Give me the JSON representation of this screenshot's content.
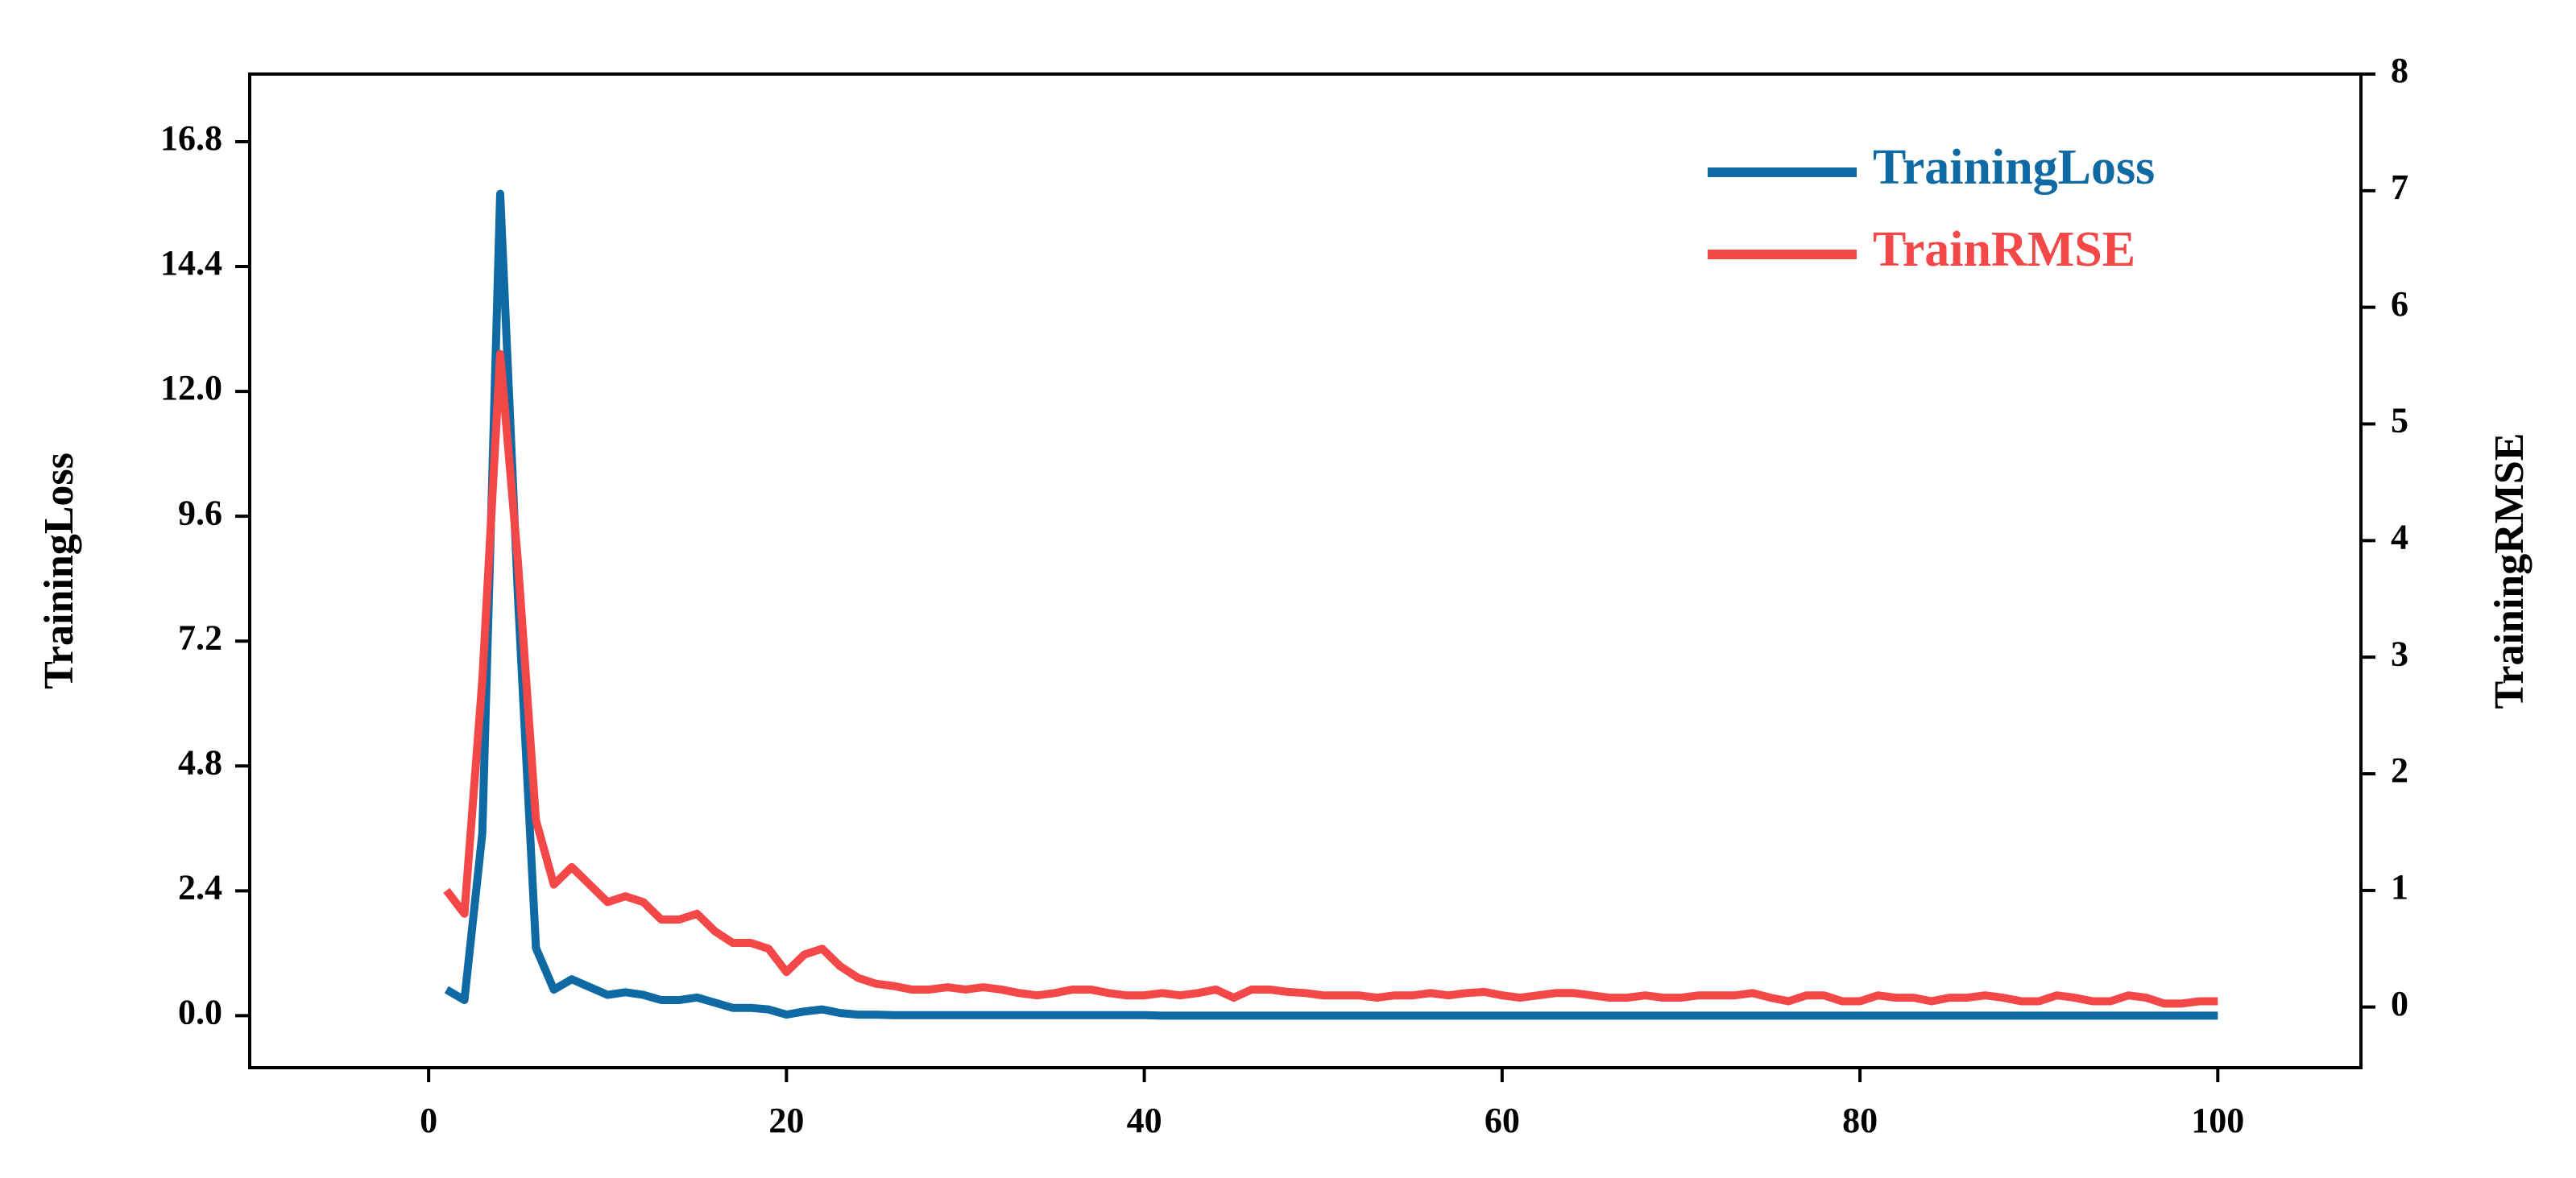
{
  "chart_data": {
    "type": "line",
    "ylabel": "TrainingLoss",
    "y2label": "TrainingRMSE",
    "x": [
      1,
      2,
      3,
      4,
      5,
      6,
      7,
      8,
      9,
      10,
      11,
      12,
      13,
      14,
      15,
      16,
      17,
      18,
      19,
      20,
      21,
      22,
      23,
      24,
      25,
      26,
      27,
      28,
      29,
      30,
      31,
      32,
      33,
      34,
      35,
      36,
      37,
      38,
      39,
      40,
      41,
      42,
      43,
      44,
      45,
      46,
      47,
      48,
      49,
      50,
      51,
      52,
      53,
      54,
      55,
      56,
      57,
      58,
      59,
      60,
      61,
      62,
      63,
      64,
      65,
      66,
      67,
      68,
      69,
      70,
      71,
      72,
      73,
      74,
      75,
      76,
      77,
      78,
      79,
      80,
      81,
      82,
      83,
      84,
      85,
      86,
      87,
      88,
      89,
      90,
      91,
      92,
      93,
      94,
      95,
      96,
      97,
      98,
      99,
      100
    ],
    "series": [
      {
        "name": "TrainingLoss",
        "color": "#0f6aa3",
        "axis": "y",
        "values": [
          0.5,
          0.3,
          3.5,
          15.8,
          8.0,
          1.3,
          0.5,
          0.7,
          0.55,
          0.4,
          0.45,
          0.4,
          0.3,
          0.3,
          0.35,
          0.25,
          0.15,
          0.15,
          0.12,
          0.02,
          0.08,
          0.12,
          0.05,
          0.02,
          0.02,
          0.01,
          0.01,
          0.01,
          0.01,
          0.01,
          0.01,
          0.01,
          0.01,
          0.01,
          0.01,
          0.01,
          0.01,
          0.01,
          0.01,
          0.01,
          0,
          0,
          0,
          0,
          0,
          0,
          0,
          0,
          0,
          0,
          0,
          0,
          0,
          0,
          0,
          0,
          0,
          0,
          0,
          0,
          0,
          0,
          0,
          0,
          0,
          0,
          0,
          0,
          0,
          0,
          0,
          0,
          0,
          0,
          0,
          0,
          0,
          0,
          0,
          0,
          0,
          0,
          0,
          0,
          0,
          0,
          0,
          0,
          0,
          0,
          0,
          0,
          0,
          0,
          0,
          0,
          0,
          0,
          0,
          0
        ]
      },
      {
        "name": "TrainRMSE",
        "color": "#f44848",
        "axis": "y2",
        "values": [
          1.0,
          0.8,
          2.8,
          5.6,
          3.8,
          1.6,
          1.05,
          1.2,
          1.05,
          0.9,
          0.95,
          0.9,
          0.75,
          0.75,
          0.8,
          0.65,
          0.55,
          0.55,
          0.5,
          0.3,
          0.45,
          0.5,
          0.35,
          0.25,
          0.2,
          0.18,
          0.15,
          0.15,
          0.17,
          0.15,
          0.17,
          0.15,
          0.12,
          0.1,
          0.12,
          0.15,
          0.15,
          0.12,
          0.1,
          0.1,
          0.12,
          0.1,
          0.12,
          0.15,
          0.08,
          0.15,
          0.15,
          0.13,
          0.12,
          0.1,
          0.1,
          0.1,
          0.08,
          0.1,
          0.1,
          0.12,
          0.1,
          0.12,
          0.13,
          0.1,
          0.08,
          0.1,
          0.12,
          0.12,
          0.1,
          0.08,
          0.08,
          0.1,
          0.08,
          0.08,
          0.1,
          0.1,
          0.1,
          0.12,
          0.08,
          0.05,
          0.1,
          0.1,
          0.05,
          0.05,
          0.1,
          0.08,
          0.08,
          0.05,
          0.08,
          0.08,
          0.1,
          0.08,
          0.05,
          0.05,
          0.1,
          0.08,
          0.05,
          0.05,
          0.1,
          0.08,
          0.03,
          0.03,
          0.05,
          0.05
        ]
      }
    ],
    "xlim": [
      -10,
      108
    ],
    "xticks": [
      0,
      20,
      40,
      60,
      80,
      100
    ],
    "ylim": [
      -1.0,
      18.1
    ],
    "yticks": [
      {
        "value": 0,
        "label": "0.0"
      },
      2.4,
      4.8,
      7.2,
      9.6,
      {
        "value": 12,
        "label": "12.0"
      },
      14.4,
      16.8
    ],
    "y2lim": [
      -0.52,
      8.0
    ],
    "y2ticks": [
      0,
      1,
      2,
      3,
      4,
      5,
      6,
      7,
      8
    ],
    "legend": "upper right"
  }
}
